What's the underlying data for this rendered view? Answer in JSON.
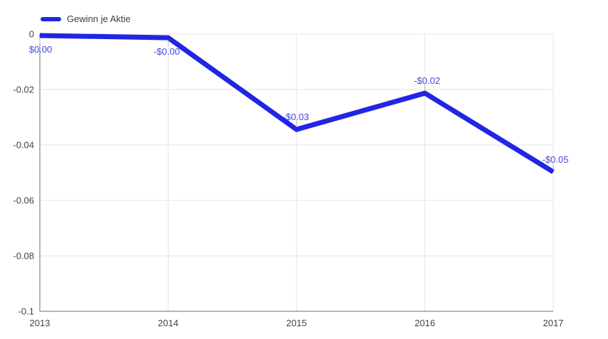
{
  "legend": {
    "label": "Gewinn je Aktie"
  },
  "colors": {
    "series": "#2126e3",
    "annotation_label": "#4046df",
    "annotation_stem": "#b0b0b0",
    "axis_line": "#6e6e6e",
    "gridline": "#e6e6e6",
    "tick_text": "#444444",
    "legend_text": "#3c3c3c",
    "background": "#ffffff"
  },
  "chart_data": {
    "type": "line",
    "title": "",
    "xlabel": "",
    "ylabel": "",
    "categories": [
      "2013",
      "2014",
      "2015",
      "2016",
      "2017"
    ],
    "series": [
      {
        "name": "Gewinn je Aktie",
        "values": [
          -0.0005,
          -0.0013,
          -0.0344,
          -0.0213,
          -0.0497
        ],
        "point_labels": [
          "$0.00",
          "-$0.00",
          "-$0.03",
          "-$0.02",
          "-$0.05"
        ]
      }
    ],
    "ylim": [
      -0.1,
      0
    ],
    "yticks": [
      0,
      -0.02,
      -0.04,
      -0.06,
      -0.08,
      -0.1
    ],
    "ytick_labels": [
      "0",
      "-0.02",
      "-0.04",
      "-0.06",
      "-0.08",
      "-0.1"
    ],
    "grid": true,
    "legend_position": "top-left",
    "label_side": [
      "below",
      "below",
      "above",
      "above",
      "above"
    ],
    "label_dx": [
      1,
      -2,
      -1,
      3,
      3
    ]
  }
}
